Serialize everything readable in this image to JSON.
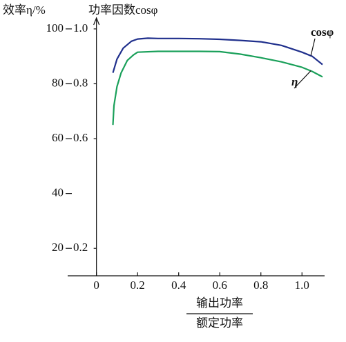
{
  "chart_data": {
    "type": "line",
    "y_label": "效率η/%",
    "y2_label": "功率因数cosφ",
    "x_label_numerator": "输出功率",
    "x_label_denominator": "额定功率",
    "xlim": [
      -0.14,
      1.11
    ],
    "xticks": [
      0,
      0.2,
      0.4,
      0.6,
      0.8,
      {
        "value": 1,
        "label": "1.0"
      }
    ],
    "ylim": [
      10,
      104
    ],
    "yticks": [
      20,
      40,
      60,
      80,
      100
    ],
    "y2lim": [
      0.1,
      1.04
    ],
    "y2ticks": [
      0.2,
      0.6,
      0.8,
      {
        "value": 1,
        "label": "1.0"
      }
    ],
    "series": [
      {
        "name": "cosφ",
        "color": "#1f2f8c",
        "axis": "y2",
        "x": [
          0.08,
          0.1,
          0.13,
          0.17,
          0.2,
          0.25,
          0.3,
          0.4,
          0.5,
          0.6,
          0.7,
          0.8,
          0.9,
          1.0,
          1.05,
          1.1
        ],
        "values": [
          0.84,
          0.89,
          0.93,
          0.955,
          0.963,
          0.966,
          0.965,
          0.965,
          0.964,
          0.962,
          0.958,
          0.953,
          0.94,
          0.915,
          0.9,
          0.87
        ]
      },
      {
        "name": "η",
        "color": "#1aa05a",
        "x": [
          0.08,
          0.085,
          0.1,
          0.12,
          0.15,
          0.18,
          0.2,
          0.3,
          0.4,
          0.5,
          0.6,
          0.7,
          0.8,
          0.9,
          1.0,
          1.05,
          1.1
        ],
        "values": [
          65,
          72,
          79,
          84,
          88.5,
          90.5,
          91.5,
          91.8,
          91.8,
          91.8,
          91.7,
          90.8,
          89.5,
          88,
          86,
          84.5,
          82.5
        ]
      }
    ]
  }
}
